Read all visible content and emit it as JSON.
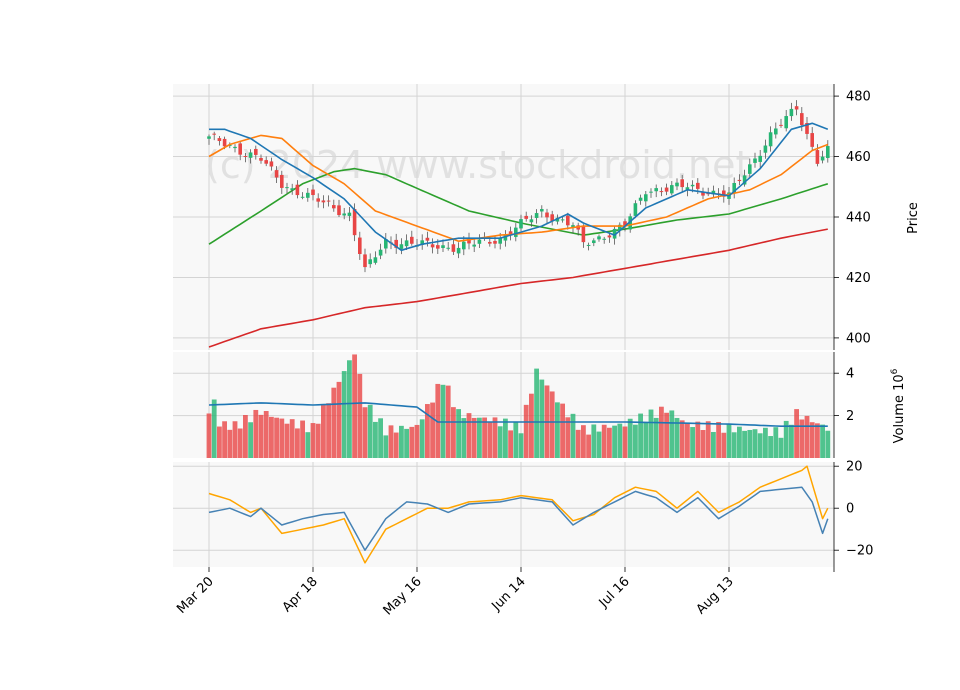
{
  "chart_data": [
    {
      "panel": "price",
      "type": "candlestick",
      "ylabel": "Price",
      "ylim": [
        396,
        484
      ],
      "yticks": [
        400,
        420,
        440,
        460,
        480
      ],
      "xticks": [
        "Mar 20",
        "Apr 18",
        "May 16",
        "Jun 14",
        "Jul 16",
        "Aug 13"
      ],
      "xtick_index": [
        0,
        20,
        40,
        60,
        80,
        100
      ],
      "grid": true,
      "watermark": "(c) 2024 www.stockdroid.net",
      "colors": {
        "up": "#26b573",
        "down": "#e84545",
        "ma_fast": "#1f77b4",
        "ma_mid": "#ff7f0e",
        "ma_slow": "#2ca02c",
        "ma_long": "#d62728"
      },
      "close_anchors": [
        [
          0,
          466
        ],
        [
          5,
          463
        ],
        [
          10,
          459
        ],
        [
          14,
          451
        ],
        [
          20,
          446
        ],
        [
          27,
          441
        ],
        [
          30,
          422
        ],
        [
          34,
          432
        ],
        [
          40,
          431
        ],
        [
          48,
          430
        ],
        [
          56,
          433
        ],
        [
          64,
          442
        ],
        [
          70,
          437
        ],
        [
          72,
          431
        ],
        [
          80,
          437
        ],
        [
          84,
          449
        ],
        [
          92,
          450
        ],
        [
          100,
          447
        ],
        [
          108,
          467
        ],
        [
          113,
          476
        ],
        [
          117,
          459
        ],
        [
          119,
          462
        ]
      ],
      "ma_fast_anchors": [
        [
          0,
          469
        ],
        [
          3,
          469
        ],
        [
          8,
          466
        ],
        [
          14,
          459
        ],
        [
          20,
          453
        ],
        [
          26,
          446
        ],
        [
          32,
          435
        ],
        [
          37,
          429
        ],
        [
          41,
          431
        ],
        [
          48,
          433
        ],
        [
          56,
          433
        ],
        [
          64,
          437
        ],
        [
          69,
          441
        ],
        [
          72,
          438
        ],
        [
          78,
          434
        ],
        [
          84,
          443
        ],
        [
          92,
          449
        ],
        [
          100,
          447
        ],
        [
          106,
          456
        ],
        [
          112,
          469
        ],
        [
          116,
          471
        ],
        [
          119,
          469
        ]
      ],
      "ma_mid_anchors": [
        [
          0,
          460
        ],
        [
          4,
          464
        ],
        [
          10,
          467
        ],
        [
          14,
          466
        ],
        [
          20,
          457
        ],
        [
          26,
          451
        ],
        [
          32,
          442
        ],
        [
          40,
          437
        ],
        [
          48,
          432
        ],
        [
          56,
          434
        ],
        [
          64,
          435
        ],
        [
          72,
          437
        ],
        [
          80,
          437
        ],
        [
          88,
          440
        ],
        [
          96,
          446
        ],
        [
          104,
          449
        ],
        [
          110,
          454
        ],
        [
          116,
          462
        ],
        [
          119,
          464
        ]
      ],
      "ma_slow_anchors": [
        [
          0,
          431
        ],
        [
          10,
          442
        ],
        [
          18,
          451
        ],
        [
          24,
          455
        ],
        [
          28,
          456
        ],
        [
          34,
          454
        ],
        [
          42,
          448
        ],
        [
          50,
          442
        ],
        [
          60,
          438
        ],
        [
          72,
          434
        ],
        [
          80,
          436
        ],
        [
          90,
          439
        ],
        [
          100,
          441
        ],
        [
          110,
          446
        ],
        [
          119,
          451
        ]
      ],
      "ma_long_anchors": [
        [
          0,
          397
        ],
        [
          10,
          403
        ],
        [
          20,
          406
        ],
        [
          30,
          410
        ],
        [
          40,
          412
        ],
        [
          50,
          415
        ],
        [
          60,
          418
        ],
        [
          70,
          420
        ],
        [
          80,
          423
        ],
        [
          90,
          426
        ],
        [
          100,
          429
        ],
        [
          110,
          433
        ],
        [
          119,
          436
        ]
      ]
    },
    {
      "panel": "volume",
      "type": "bar",
      "ylabel": "Volume  10",
      "ylabel_exponent": "6",
      "ylim": [
        0,
        5
      ],
      "yticks": [
        2,
        4
      ],
      "volume_anchors": [
        [
          0,
          2.1
        ],
        [
          1,
          2.7
        ],
        [
          2,
          1.6
        ],
        [
          5,
          1.5
        ],
        [
          10,
          2.2
        ],
        [
          14,
          1.8
        ],
        [
          20,
          1.4
        ],
        [
          28,
          5.0
        ],
        [
          30,
          2.6
        ],
        [
          34,
          1.3
        ],
        [
          40,
          1.5
        ],
        [
          45,
          3.7
        ],
        [
          48,
          2.1
        ],
        [
          56,
          1.7
        ],
        [
          60,
          1.4
        ],
        [
          63,
          4.1
        ],
        [
          68,
          2.4
        ],
        [
          72,
          1.3
        ],
        [
          80,
          1.6
        ],
        [
          88,
          2.3
        ],
        [
          92,
          1.6
        ],
        [
          100,
          1.4
        ],
        [
          110,
          1.2
        ],
        [
          113,
          2.1
        ],
        [
          119,
          1.4
        ]
      ],
      "volume_ma_anchors": [
        [
          0,
          2.5
        ],
        [
          10,
          2.6
        ],
        [
          20,
          2.5
        ],
        [
          30,
          2.6
        ],
        [
          40,
          2.4
        ],
        [
          44,
          1.7
        ],
        [
          60,
          1.7
        ],
        [
          80,
          1.7
        ],
        [
          100,
          1.6
        ],
        [
          110,
          1.5
        ],
        [
          119,
          1.5
        ]
      ],
      "colors": {
        "volume_ma": "#1f77b4"
      }
    },
    {
      "panel": "oscillator",
      "type": "line",
      "ylim": [
        -28,
        22
      ],
      "yticks": [
        20,
        0,
        -20
      ],
      "ytick_labels": [
        "20",
        "0",
        "−20"
      ],
      "colors": {
        "series_1": "#4682b4",
        "series_2": "#ffa500"
      },
      "series": [
        {
          "values_anchors": [
            [
              0,
              -2
            ],
            [
              4,
              0
            ],
            [
              8,
              -4
            ],
            [
              10,
              0
            ],
            [
              14,
              -8
            ],
            [
              18,
              -5
            ],
            [
              22,
              -3
            ],
            [
              26,
              -2
            ],
            [
              30,
              -20
            ],
            [
              34,
              -5
            ],
            [
              38,
              3
            ],
            [
              42,
              2
            ],
            [
              46,
              -2
            ],
            [
              50,
              2
            ],
            [
              56,
              3
            ],
            [
              60,
              5
            ],
            [
              66,
              3
            ],
            [
              70,
              -8
            ],
            [
              74,
              -2
            ],
            [
              78,
              3
            ],
            [
              82,
              8
            ],
            [
              86,
              5
            ],
            [
              90,
              -2
            ],
            [
              94,
              5
            ],
            [
              98,
              -5
            ],
            [
              102,
              1
            ],
            [
              106,
              8
            ],
            [
              110,
              9
            ],
            [
              114,
              10
            ],
            [
              116,
              3
            ],
            [
              118,
              -12
            ],
            [
              119,
              -5
            ]
          ]
        },
        {
          "values_anchors": [
            [
              0,
              7
            ],
            [
              4,
              4
            ],
            [
              8,
              -2
            ],
            [
              10,
              0
            ],
            [
              14,
              -12
            ],
            [
              18,
              -10
            ],
            [
              22,
              -8
            ],
            [
              26,
              -5
            ],
            [
              30,
              -26
            ],
            [
              34,
              -10
            ],
            [
              38,
              -5
            ],
            [
              42,
              0
            ],
            [
              46,
              0
            ],
            [
              50,
              3
            ],
            [
              56,
              4
            ],
            [
              60,
              6
            ],
            [
              66,
              4
            ],
            [
              70,
              -6
            ],
            [
              74,
              -3
            ],
            [
              78,
              5
            ],
            [
              82,
              10
            ],
            [
              86,
              8
            ],
            [
              90,
              0
            ],
            [
              94,
              8
            ],
            [
              98,
              -2
            ],
            [
              102,
              3
            ],
            [
              106,
              10
            ],
            [
              110,
              14
            ],
            [
              114,
              18
            ],
            [
              115,
              20
            ],
            [
              118,
              -5
            ],
            [
              119,
              0
            ]
          ]
        }
      ]
    }
  ]
}
